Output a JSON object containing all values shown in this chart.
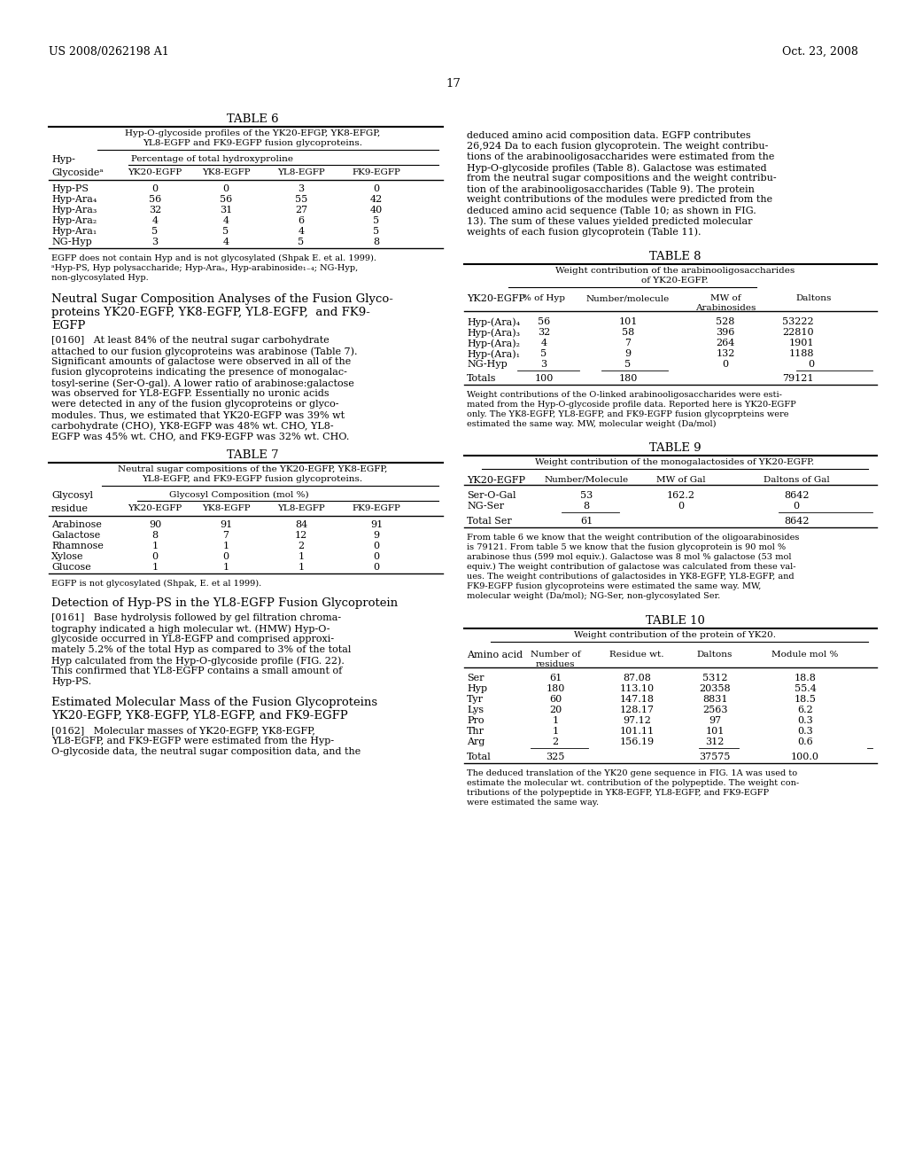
{
  "header_left": "US 2008/0262198 A1",
  "header_right": "Oct. 23, 2008",
  "page_number": "17",
  "bg_color": "#ffffff",
  "table6_title": "TABLE 6",
  "table6_subtitle1": "Hyp-O-glycoside profiles of the YK20-EFGP, YK8-EFGP,",
  "table6_subtitle2": "YL8-EGFP and FK9-EGFP fusion glycoproteins.",
  "table6_col_header1": "Hyp-",
  "table6_col_header2": "Percentage of total hydroxyproline",
  "table6_col_header3": "Glycosideᵃ",
  "table6_cols": [
    "YK20-EGFP",
    "YK8-EGFP",
    "YL8-EGFP",
    "FK9-EGFP"
  ],
  "table6_rows": [
    [
      "Hyp-PS",
      "0",
      "0",
      "3",
      "0"
    ],
    [
      "Hyp-Ara₄",
      "56",
      "56",
      "55",
      "42"
    ],
    [
      "Hyp-Ara₃",
      "32",
      "31",
      "27",
      "40"
    ],
    [
      "Hyp-Ara₂",
      "4",
      "4",
      "6",
      "5"
    ],
    [
      "Hyp-Ara₁",
      "5",
      "5",
      "4",
      "5"
    ],
    [
      "NG-Hyp",
      "3",
      "4",
      "5",
      "8"
    ]
  ],
  "table6_footnote1": "EGFP does not contain Hyp and is not glycosylated (Shpak E. et al. 1999).",
  "table6_footnote2": "ᵃHyp-PS, Hyp polysaccharide; Hyp-Araₙ, Hyp-arabinoside₁₋₄; NG-Hyp,",
  "table6_footnote3": "non-glycosylated Hyp.",
  "section1_line1": "Neutral Sugar Composition Analyses of the Fusion Glyco-",
  "section1_line2": "proteins YK20-EGFP, YK8-EGFP, YL8-EGFP,  and FK9-",
  "section1_line3": "EGFP",
  "para0160_lines": [
    "[0160]   At least 84% of the neutral sugar carbohydrate",
    "attached to our fusion glycoproteins was arabinose (Table 7).",
    "Significant amounts of galactose were observed in all of the",
    "fusion glycoproteins indicating the presence of monogalac-",
    "tosyl-serine (Ser-O-gal). A lower ratio of arabinose:galactose",
    "was observed for YL8-EGFP. Essentially no uronic acids",
    "were detected in any of the fusion glycoproteins or glyco-",
    "modules. Thus, we estimated that YK20-EGFP was 39% wt",
    "carbohydrate (CHO), YK8-EGFP was 48% wt. CHO, YL8-",
    "EGFP was 45% wt. CHO, and FK9-EGFP was 32% wt. CHO."
  ],
  "table7_title": "TABLE 7",
  "table7_subtitle1": "Neutral sugar compositions of the YK20-EGFP, YK8-EGFP,",
  "table7_subtitle2": "YL8-EGFP, and FK9-EGFP fusion glycoproteins.",
  "table7_col_header1": "Glycosyl",
  "table7_col_header2": "Glycosyl Composition (mol %)",
  "table7_col_header3": "residue",
  "table7_cols": [
    "YK20-EGFP",
    "YK8-EGFP",
    "YL8-EGFP",
    "FK9-EGFP"
  ],
  "table7_rows": [
    [
      "Arabinose",
      "90",
      "91",
      "84",
      "91"
    ],
    [
      "Galactose",
      "8",
      "7",
      "12",
      "9"
    ],
    [
      "Rhamnose",
      "1",
      "1",
      "2",
      "0"
    ],
    [
      "Xylose",
      "0",
      "0",
      "1",
      "0"
    ],
    [
      "Glucose",
      "1",
      "1",
      "1",
      "0"
    ]
  ],
  "table7_footnote": "EGFP is not glycosylated (Shpak, E. et al 1999).",
  "section2_title": "Detection of Hyp-PS in the YL8-EGFP Fusion Glycoprotein",
  "para0161_lines": [
    "[0161]   Base hydrolysis followed by gel filtration chroma-",
    "tography indicated a high molecular wt. (HMW) Hyp-O-",
    "glycoside occurred in YL8-EGFP and comprised approxi-",
    "mately 5.2% of the total Hyp as compared to 3% of the total",
    "Hyp calculated from the Hyp-O-glycoside profile (FIG. 22).",
    "This confirmed that YL8-EGFP contains a small amount of",
    "Hyp-PS."
  ],
  "section3_line1": "Estimated Molecular Mass of the Fusion Glycoproteins",
  "section3_line2": "YK20-EGFP, YK8-EGFP, YL8-EGFP, and FK9-EGFP",
  "para0162_lines": [
    "[0162]   Molecular masses of YK20-EGFP, YK8-EGFP,",
    "YL8-EGFP, and FK9-EGFP were estimated from the Hyp-",
    "O-glycoside data, the neutral sugar composition data, and the"
  ],
  "right_para1_lines": [
    "deduced amino acid composition data. EGFP contributes",
    "26,924 Da to each fusion glycoprotein. The weight contribu-",
    "tions of the arabinooligosaccharides were estimated from the",
    "Hyp-O-glycoside profiles (Table 8). Galactose was estimated",
    "from the neutral sugar compositions and the weight contribu-",
    "tion of the arabinooligosaccharides (Table 9). The protein",
    "weight contributions of the modules were predicted from the",
    "deduced amino acid sequence (Table 10; as shown in FIG.",
    "13). The sum of these values yielded predicted molecular",
    "weights of each fusion glycoprotein (Table 11)."
  ],
  "table8_title": "TABLE 8",
  "table8_subtitle1": "Weight contribution of the arabinooligosaccharides",
  "table8_subtitle2": "of YK20-EGFP.",
  "table8_col1": "YK20-EGFP",
  "table8_col2": "% of Hyp",
  "table8_col3": "Number/molecule",
  "table8_col4a": "MW of",
  "table8_col4b": "Arabinosides",
  "table8_col5": "Daltons",
  "table8_rows": [
    [
      "Hyp-(Ara)₄",
      "56",
      "101",
      "528",
      "53222"
    ],
    [
      "Hyp-(Ara)₃",
      "32",
      "58",
      "396",
      "22810"
    ],
    [
      "Hyp-(Ara)₂",
      "4",
      "7",
      "264",
      "1901"
    ],
    [
      "Hyp-(Ara)₁",
      "5",
      "9",
      "132",
      "1188"
    ],
    [
      "NG-Hyp",
      "3",
      "5",
      "0",
      "0"
    ]
  ],
  "table8_totals": [
    "Totals",
    "100",
    "180",
    "",
    "79121"
  ],
  "table8_footnote_lines": [
    "Weight contributions of the O-linked arabinooligosaccharides were esti-",
    "mated from the Hyp-O-glycoside profile data. Reported here is YK20-EGFP",
    "only. The YK8-EGFP, YL8-EGFP, and FK9-EGFP fusion glycoprpteins were",
    "estimated the same way. MW, molecular weight (Da/mol)"
  ],
  "table9_title": "TABLE 9",
  "table9_subtitle": "Weight contribution of the monogalactosides of YK20-EGFP.",
  "table9_col1": "YK20-EGFP",
  "table9_col2": "Number/Molecule",
  "table9_col3": "MW of Gal",
  "table9_col4": "Daltons of Gal",
  "table9_rows": [
    [
      "Ser-O-Gal",
      "53",
      "162.2",
      "8642"
    ],
    [
      "NG-Ser",
      "8",
      "0",
      "0"
    ]
  ],
  "table9_total": [
    "Total Ser",
    "61",
    "",
    "8642"
  ],
  "table9_footnote_lines": [
    "From table 6 we know that the weight contribution of the oligoarabinosides",
    "is 79121. From table 5 we know that the fusion glycoprotein is 90 mol %",
    "arabinose thus (599 mol equiv.). Galactose was 8 mol % galactose (53 mol",
    "equiv.) The weight contribution of galactose was calculated from these val-",
    "ues. The weight contributions of galactosides in YK8-EGFP, YL8-EGFP, and",
    "FK9-EGFP fusion glycoproteins were estimated the same way. MW,",
    "molecular weight (Da/mol); NG-Ser, non-glycosylated Ser."
  ],
  "table10_title": "TABLE 10",
  "table10_subtitle": "Weight contribution of the protein of YK20.",
  "table10_col1": "Amino acid",
  "table10_col2a": "Number of",
  "table10_col2b": "residues",
  "table10_col3": "Residue wt.",
  "table10_col4": "Daltons",
  "table10_col5": "Module mol %",
  "table10_rows": [
    [
      "Ser",
      "61",
      "87.08",
      "5312",
      "18.8"
    ],
    [
      "Hyp",
      "180",
      "113.10",
      "20358",
      "55.4"
    ],
    [
      "Tyr",
      "60",
      "147.18",
      "8831",
      "18.5"
    ],
    [
      "Lys",
      "20",
      "128.17",
      "2563",
      "6.2"
    ],
    [
      "Pro",
      "1",
      "97.12",
      "97",
      "0.3"
    ],
    [
      "Thr",
      "1",
      "101.11",
      "101",
      "0.3"
    ],
    [
      "Arg",
      "2",
      "156.19",
      "312",
      "0.6"
    ]
  ],
  "table10_total": [
    "Total",
    "325",
    "",
    "37575",
    "100.0"
  ],
  "table10_footnote_lines": [
    "The deduced translation of the YK20 gene sequence in FIG. 1A was used to",
    "estimate the molecular wt. contribution of the polypeptide. The weight con-",
    "tributions of the polypeptide in YK8-EGFP, YL8-EGFP, and FK9-EGFP",
    "were estimated the same way."
  ]
}
